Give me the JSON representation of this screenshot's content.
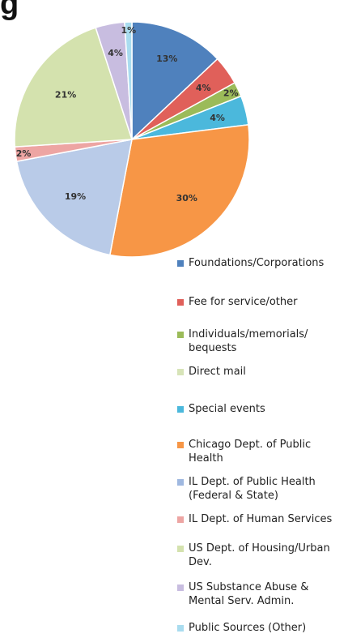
{
  "header": {
    "title_fragment": "g"
  },
  "chart_data": {
    "type": "pie",
    "start_angle_deg": 0,
    "direction": "clockwise",
    "slices": [
      {
        "label": "Foundations/Corporations",
        "value": 13,
        "value_label": "13%",
        "color": "#4f81bd"
      },
      {
        "label": "Fee for service/other",
        "value": 4,
        "value_label": "4%",
        "color": "#e0605a"
      },
      {
        "label": "Individuals/memorials/ bequests",
        "value": 2,
        "value_label": "2%",
        "color": "#9bbb59"
      },
      {
        "label": "Special events",
        "value": 4,
        "value_label": "4%",
        "color": "#4bb8dc"
      },
      {
        "label": "Chicago Dept. of Public Health",
        "value": 30,
        "value_label": "30%",
        "color": "#f79646"
      },
      {
        "label": "IL Dept. of Public Health (Federal & State)",
        "value": 19,
        "value_label": "19%",
        "color": "#b9cbe8"
      },
      {
        "label": "IL Dept. of Human Services",
        "value": 2,
        "value_label": "2%",
        "color": "#eda5a3"
      },
      {
        "label": "US Dept. of Housing/Urban Dev.",
        "value": 21,
        "value_label": "21%",
        "color": "#d4e2ae"
      },
      {
        "label": "US Substance Abuse & Mental Serv. Admin.",
        "value": 4,
        "value_label": "4%",
        "color": "#c8bde0"
      },
      {
        "label": "Public Sources (Other)",
        "value": 1,
        "value_label": "1%",
        "color": "#a9dcef"
      }
    ],
    "legend": {
      "position": "bottom-right",
      "items": [
        {
          "label": "Foundations/Corporations",
          "color": "#4f81bd"
        },
        {
          "label": "Fee for service/other",
          "color": "#e0605a"
        },
        {
          "label": "Individuals/memorials/ bequests",
          "color": "#9bbb59"
        },
        {
          "label": "Direct mail",
          "color": "#d7e4b8"
        },
        {
          "label": "Special events",
          "color": "#4bb8dc"
        },
        {
          "label": "Chicago Dept. of Public Health",
          "color": "#f79646"
        },
        {
          "label": "IL Dept. of Public Health (Federal & State)",
          "color": "#9fb8e0"
        },
        {
          "label": "IL Dept. of Human Services",
          "color": "#eda5a3"
        },
        {
          "label": "US Dept. of Housing/Urban Dev.",
          "color": "#d4e2ae"
        },
        {
          "label": "US Substance Abuse & Mental Serv. Admin.",
          "color": "#c8bde0"
        },
        {
          "label": "Public Sources (Other)",
          "color": "#a9dcef"
        }
      ]
    }
  }
}
